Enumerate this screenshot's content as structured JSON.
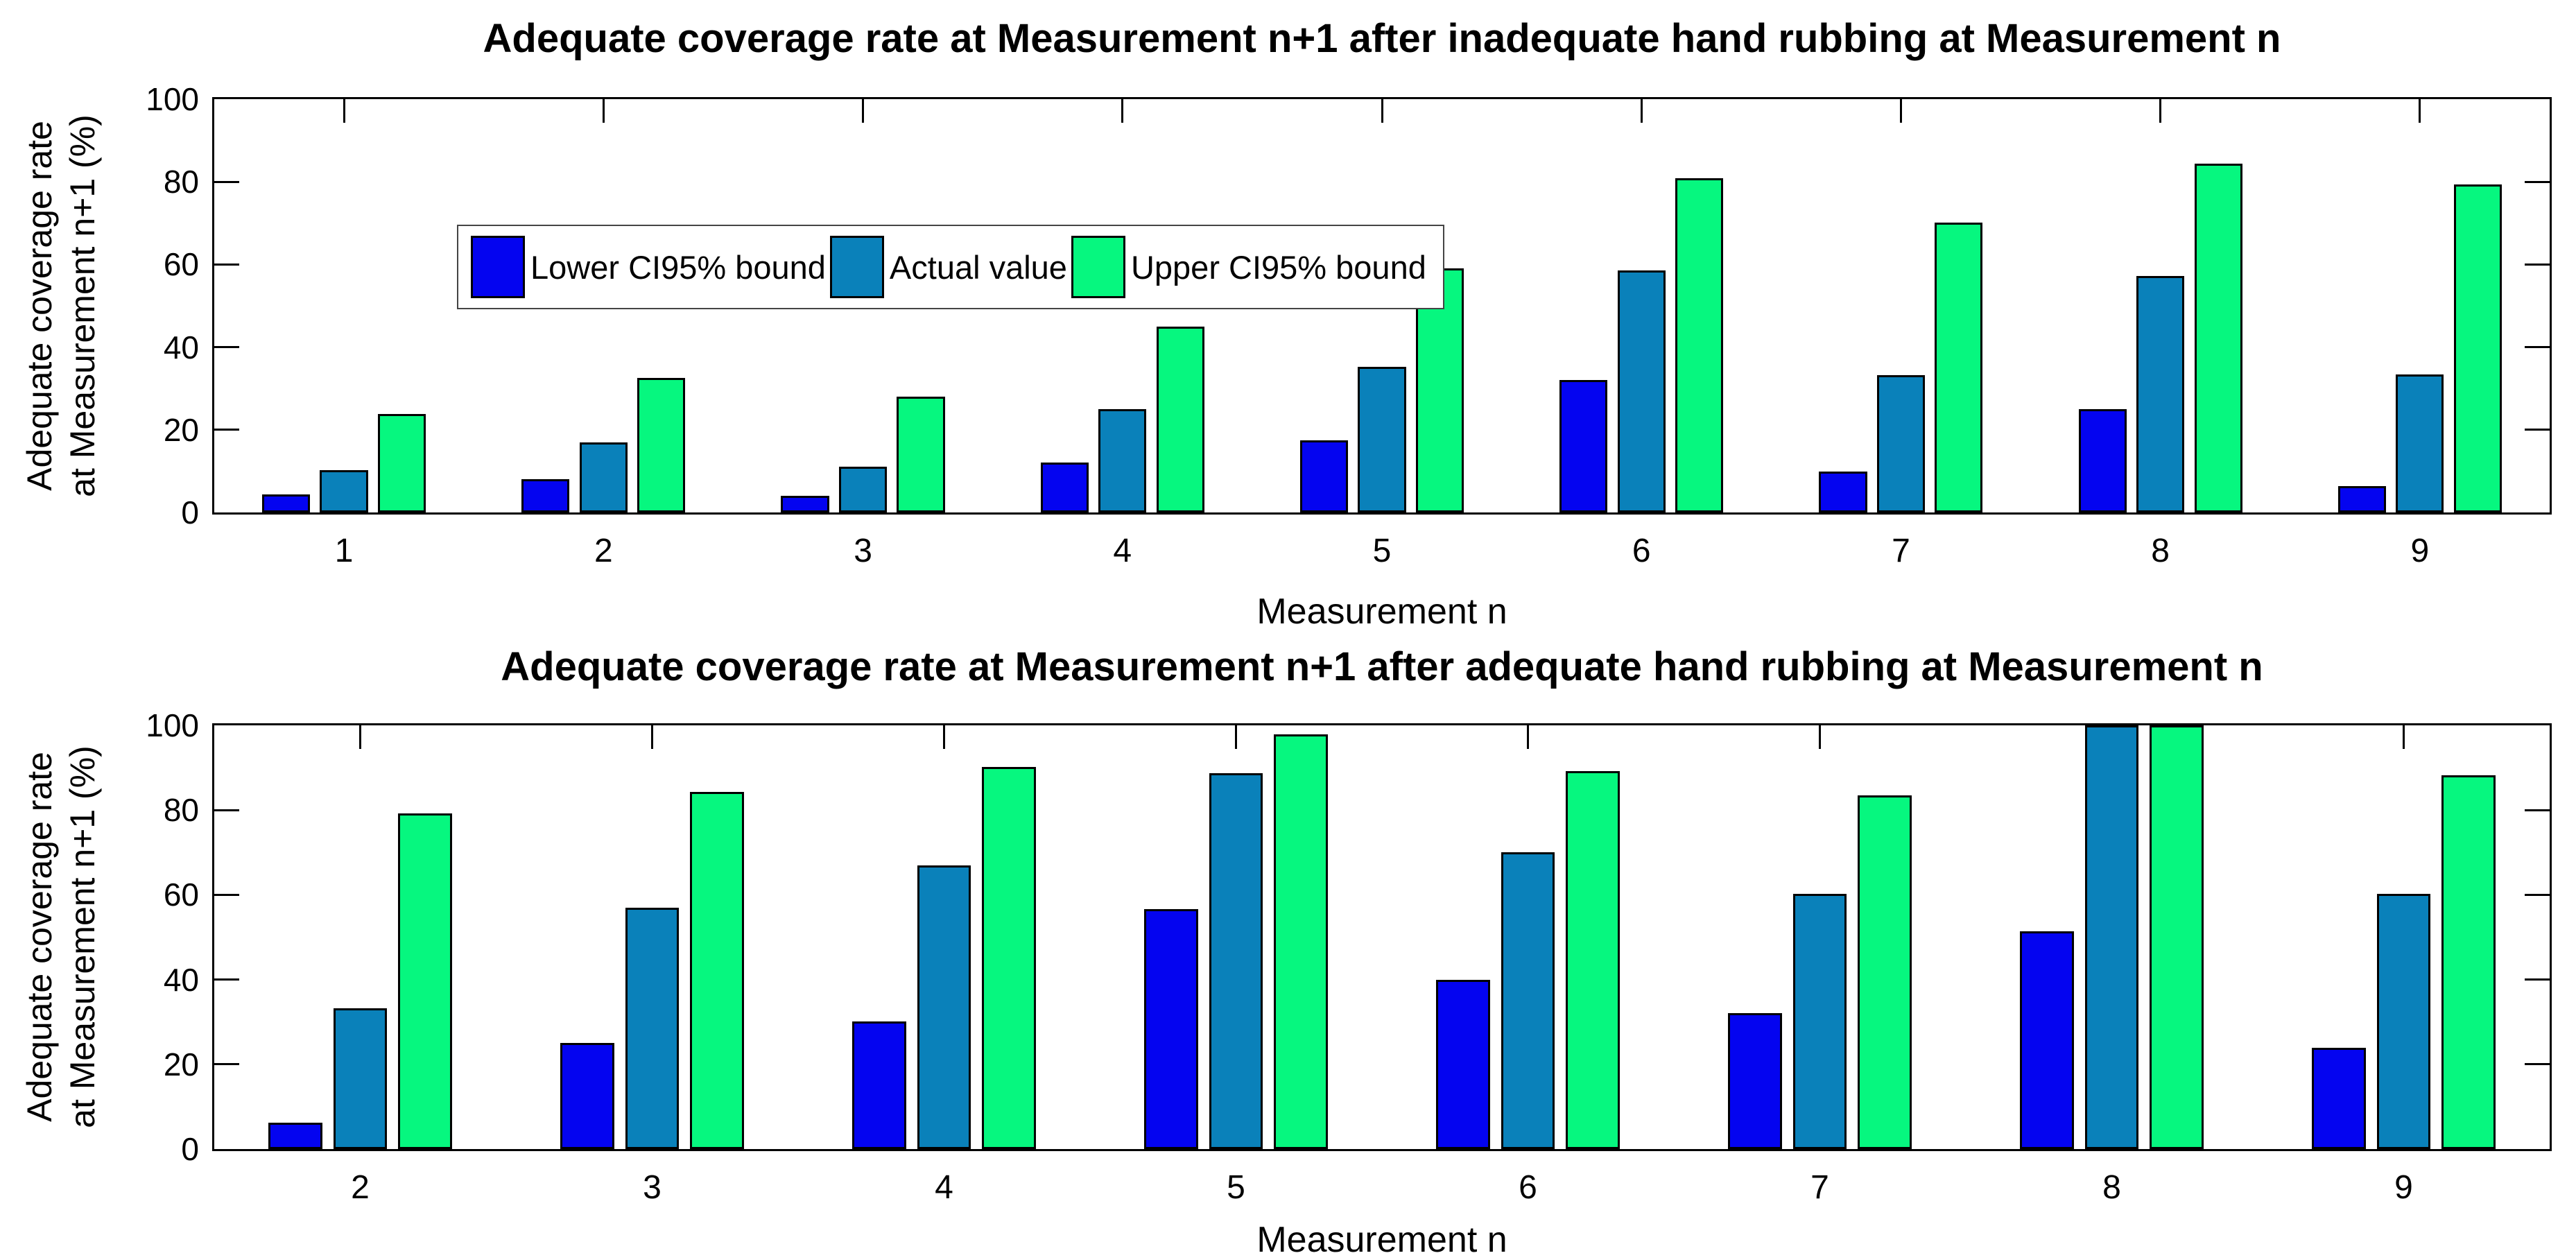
{
  "figure": {
    "background": "#ffffff",
    "axis_color": "#000000",
    "bar_border_color": "#000000",
    "series_colors": {
      "lower": "#0404F0",
      "actual": "#0A81BA",
      "upper": "#06F77F"
    },
    "legend": {
      "items": [
        {
          "label": "Lower CI95% bound",
          "color": "#0404F0"
        },
        {
          "label": "Actual value",
          "color": "#0A81BA"
        },
        {
          "label": "Upper CI95% bound",
          "color": "#06F77F"
        }
      ]
    }
  },
  "chart_data": [
    {
      "type": "bar",
      "title": "Adequate coverage rate at Measurement n+1 after inadequate hand rubbing at Measurement n",
      "xlabel": "Measurement n",
      "ylabel": "Adequate coverage rate\nat Measurement n+1 (%)",
      "categories": [
        "1",
        "2",
        "3",
        "4",
        "5",
        "6",
        "7",
        "8",
        "9"
      ],
      "yticks": [
        0,
        20,
        40,
        60,
        80,
        100
      ],
      "ylim": [
        0,
        100
      ],
      "grid": false,
      "legend_position": "top-left-inside",
      "series": [
        {
          "name": "Lower CI95% bound",
          "color": "#0404F0",
          "values": [
            4.3,
            8.1,
            4.0,
            12.0,
            17.4,
            32.0,
            9.9,
            25.0,
            6.3
          ]
        },
        {
          "name": "Actual value",
          "color": "#0A81BA",
          "values": [
            10.2,
            17.0,
            11.0,
            25.0,
            35.3,
            58.6,
            33.3,
            57.2,
            33.4
          ]
        },
        {
          "name": "Upper CI95% bound",
          "color": "#06F77F",
          "values": [
            23.8,
            32.5,
            28.0,
            45.0,
            59.0,
            80.9,
            70.2,
            84.4,
            79.4
          ]
        }
      ]
    },
    {
      "type": "bar",
      "title": "Adequate coverage rate at Measurement n+1 after adequate hand rubbing at Measurement n",
      "xlabel": "Measurement n",
      "ylabel": "Adequate coverage rate\nat Measurement n+1 (%)",
      "categories": [
        "2",
        "3",
        "4",
        "5",
        "6",
        "7",
        "8",
        "9"
      ],
      "yticks": [
        0,
        20,
        40,
        60,
        80,
        100
      ],
      "ylim": [
        0,
        100
      ],
      "grid": false,
      "legend_position": "none",
      "series": [
        {
          "name": "Lower CI95% bound",
          "color": "#0404F0",
          "values": [
            6.3,
            25.1,
            30.1,
            56.7,
            40.0,
            32.0,
            51.4,
            23.9
          ]
        },
        {
          "name": "Actual value",
          "color": "#0A81BA",
          "values": [
            33.2,
            56.9,
            66.9,
            88.7,
            70.1,
            60.3,
            100.0,
            60.3
          ]
        },
        {
          "name": "Upper CI95% bound",
          "color": "#06F77F",
          "values": [
            79.2,
            84.3,
            90.1,
            97.8,
            89.2,
            83.4,
            100.0,
            88.2
          ]
        }
      ]
    }
  ]
}
